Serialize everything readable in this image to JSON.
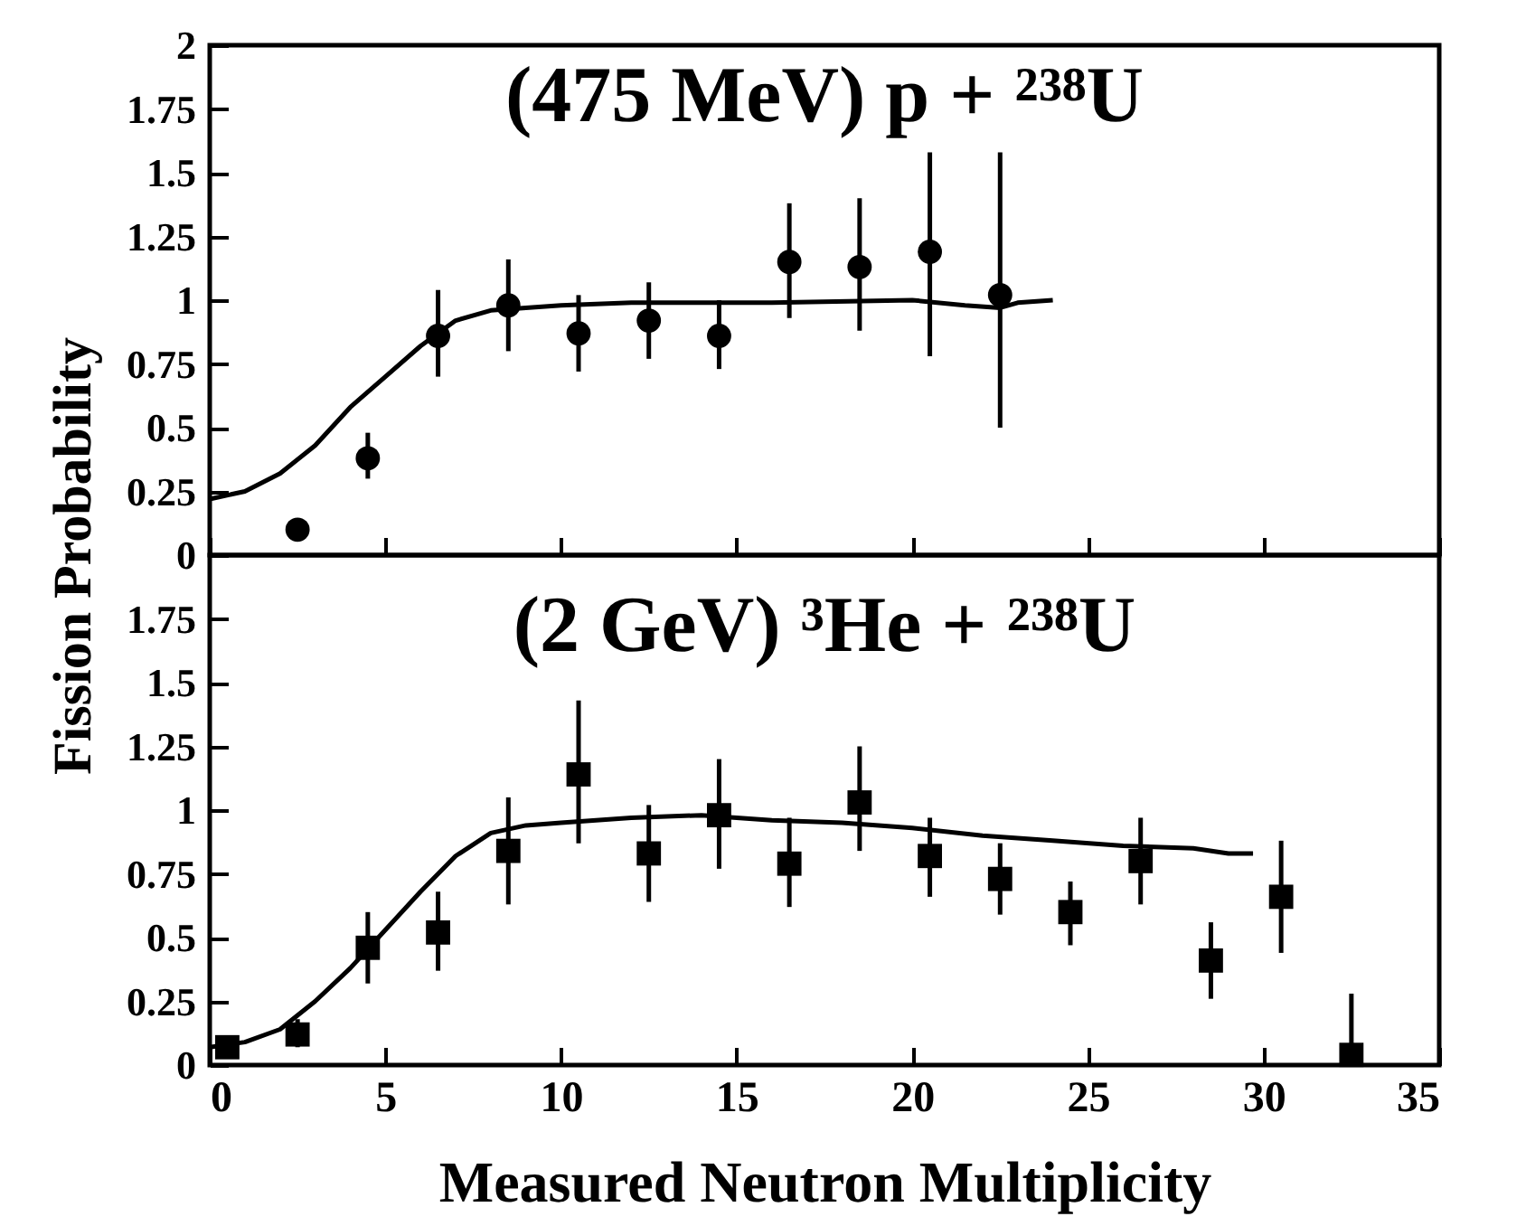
{
  "chart_data": [
    {
      "type": "scatter",
      "title": "(475 MeV) p + ²³⁸U",
      "ylabel": "Fission Probability",
      "xlim": [
        0,
        35
      ],
      "xticks": [
        0,
        5,
        10,
        15,
        20,
        25,
        30,
        35
      ],
      "ylim": [
        0,
        2
      ],
      "yticks": [
        0,
        0.25,
        0.5,
        0.75,
        1,
        1.25,
        1.5,
        1.75,
        2
      ],
      "tick_labels": "y",
      "grid": false,
      "series": [
        {
          "type": "line",
          "color": "#000000",
          "marker": "none",
          "x": [
            0,
            1,
            2,
            3,
            4,
            5,
            6,
            7,
            8,
            10,
            12,
            16,
            20,
            21.5,
            22.5,
            23,
            24
          ],
          "values": [
            0.22,
            0.25,
            0.32,
            0.43,
            0.58,
            0.7,
            0.82,
            0.92,
            0.96,
            0.98,
            0.99,
            0.99,
            1.0,
            0.98,
            0.97,
            0.99,
            1.0
          ]
        },
        {
          "type": "scatter",
          "color": "#000000",
          "marker": "circle",
          "x": [
            2.5,
            4.5,
            6.5,
            8.5,
            10.5,
            12.5,
            14.5,
            16.5,
            18.5,
            20.5,
            22.5
          ],
          "values": [
            0.1,
            0.38,
            0.86,
            0.98,
            0.87,
            0.92,
            0.86,
            1.15,
            1.13,
            1.19,
            1.02
          ],
          "errors": [
            null,
            [
              0.3,
              0.48
            ],
            [
              0.7,
              1.04
            ],
            [
              0.8,
              1.16
            ],
            [
              0.72,
              1.02
            ],
            [
              0.77,
              1.07
            ],
            [
              0.73,
              1.0
            ],
            [
              0.93,
              1.38
            ],
            [
              0.88,
              1.4
            ],
            [
              0.78,
              1.58
            ],
            [
              0.5,
              1.58
            ]
          ]
        }
      ]
    },
    {
      "type": "scatter",
      "title": "(2 GeV) ³He + ²³⁸U",
      "xlabel": "Measured Neutron Multiplicity",
      "xlim": [
        0,
        35
      ],
      "xticks": [
        0,
        5,
        10,
        15,
        20,
        25,
        30,
        35
      ],
      "ylim": [
        0,
        2
      ],
      "yticks": [
        0,
        0.25,
        0.5,
        0.75,
        1,
        1.25,
        1.5,
        1.75
      ],
      "grid": false,
      "series": [
        {
          "type": "line",
          "color": "#000000",
          "marker": "none",
          "x": [
            0,
            1,
            2,
            3,
            4,
            5,
            6,
            7,
            8,
            9,
            10,
            12,
            14,
            16,
            18,
            20,
            22,
            24,
            26,
            28,
            29,
            29.7
          ],
          "values": [
            0.07,
            0.09,
            0.14,
            0.25,
            0.38,
            0.53,
            0.68,
            0.82,
            0.91,
            0.94,
            0.95,
            0.97,
            0.98,
            0.96,
            0.95,
            0.93,
            0.9,
            0.88,
            0.86,
            0.85,
            0.83,
            0.83
          ]
        },
        {
          "type": "scatter",
          "color": "#000000",
          "marker": "square",
          "x": [
            0.5,
            2.5,
            4.5,
            6.5,
            8.5,
            10.5,
            12.5,
            14.5,
            16.5,
            18.5,
            20.5,
            22.5,
            24.5,
            26.5,
            28.5,
            30.5,
            32.5
          ],
          "values": [
            0.07,
            0.12,
            0.46,
            0.52,
            0.84,
            1.14,
            0.83,
            0.98,
            0.79,
            1.03,
            0.82,
            0.73,
            0.6,
            0.8,
            0.41,
            0.66,
            0.04
          ],
          "errors": [
            null,
            [
              0.07,
              0.18
            ],
            [
              0.32,
              0.6
            ],
            [
              0.37,
              0.68
            ],
            [
              0.63,
              1.05
            ],
            [
              0.87,
              1.43
            ],
            [
              0.64,
              1.02
            ],
            [
              0.77,
              1.2
            ],
            [
              0.62,
              0.97
            ],
            [
              0.84,
              1.25
            ],
            [
              0.66,
              0.97
            ],
            [
              0.59,
              0.87
            ],
            [
              0.47,
              0.72
            ],
            [
              0.63,
              0.97
            ],
            [
              0.26,
              0.56
            ],
            [
              0.44,
              0.88
            ],
            [
              0,
              0.28
            ]
          ]
        }
      ]
    }
  ]
}
